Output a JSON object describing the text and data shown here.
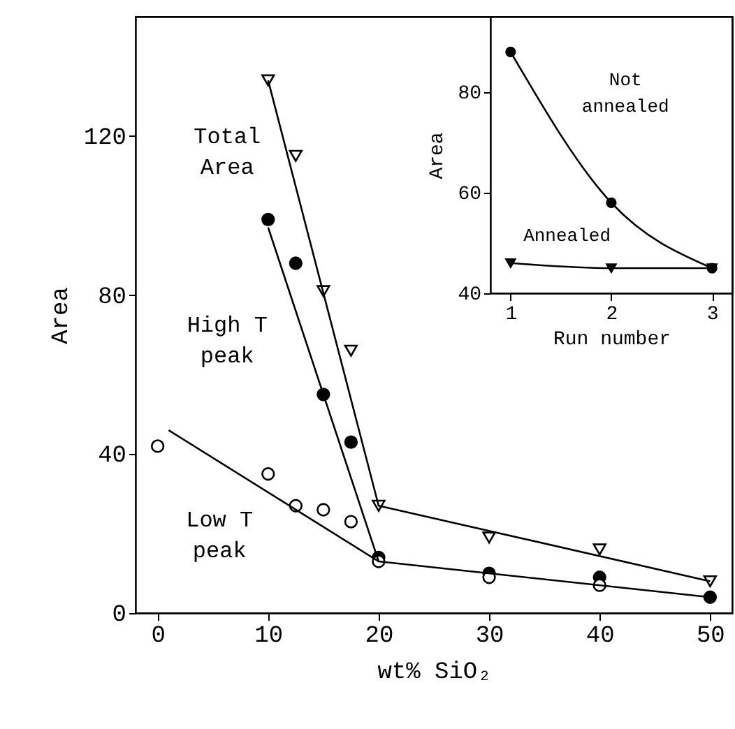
{
  "chart_data": [
    {
      "type": "scatter",
      "xlabel": "wt% SiO₂",
      "ylabel": "Area",
      "xlim": [
        -2,
        52
      ],
      "ylim": [
        0,
        150
      ],
      "xticks": [
        0,
        10,
        20,
        30,
        40,
        50
      ],
      "yticks": [
        0,
        40,
        80,
        120
      ],
      "series": [
        {
          "name": "Total Area",
          "color": "#000000",
          "marker": "triangle",
          "x": [
            10,
            12.5,
            15,
            17.5,
            20,
            30,
            40,
            50
          ],
          "values": [
            134,
            115,
            81,
            66,
            27,
            19,
            16,
            8
          ]
        },
        {
          "name": "High T peak",
          "color": "#000000",
          "marker": "circle",
          "x": [
            10,
            12.5,
            15,
            17.5,
            20,
            30,
            40,
            50
          ],
          "values": [
            99,
            88,
            55,
            43,
            14,
            10,
            9,
            4
          ]
        },
        {
          "name": "Low T peak",
          "color": "#000000",
          "marker": "circle",
          "x": [
            0,
            10,
            12.5,
            15,
            17.5,
            20,
            30,
            40
          ],
          "values": [
            42,
            35,
            27,
            26,
            23,
            13,
            9,
            7
          ]
        },
        {
          "type": "line",
          "color": "#000000",
          "x": [
            10,
            20,
            50
          ],
          "values": [
            134,
            27,
            8
          ]
        },
        {
          "type": "line",
          "color": "#000000",
          "x": [
            10,
            20,
            50
          ],
          "values": [
            97,
            13,
            4
          ]
        },
        {
          "type": "line",
          "color": "#000000",
          "x": [
            1,
            20
          ],
          "values": [
            46,
            13
          ]
        }
      ]
    },
    {
      "type": "line",
      "xlabel": "Run number",
      "ylabel": "Area",
      "xlim": [
        0.8,
        3.2
      ],
      "ylim": [
        40,
        95
      ],
      "xticks": [
        1,
        2,
        3
      ],
      "yticks": [
        40,
        60,
        80
      ],
      "series": [
        {
          "name": "Not annealed",
          "color": "#000000",
          "marker": "circle",
          "x": [
            1,
            2,
            3
          ],
          "values": [
            88,
            58,
            45
          ]
        },
        {
          "name": "Annealed",
          "color": "#000000",
          "marker": "triangle",
          "x": [
            1,
            2,
            3
          ],
          "values": [
            46,
            45,
            45
          ]
        }
      ]
    }
  ]
}
